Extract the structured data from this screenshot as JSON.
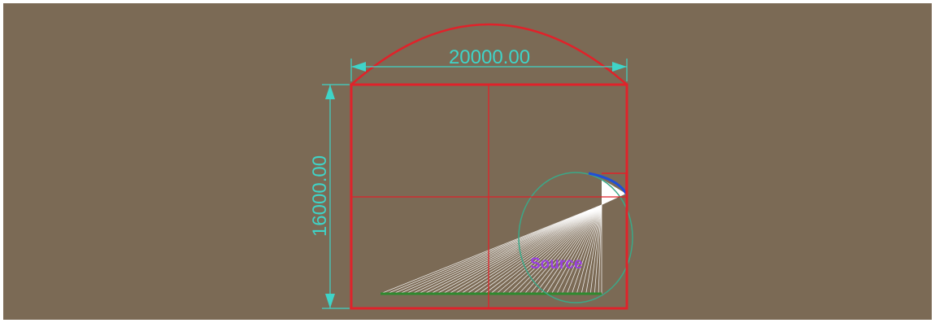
{
  "dimensions": {
    "width_label": "20000.00",
    "height_label": "16000.00"
  },
  "labels": {
    "source": "Source"
  },
  "colors": {
    "background": "#7b6a55",
    "frame": "#e0222a",
    "dimension": "#3fd4c8",
    "source_label": "#9a40e0",
    "rays": "#ffffff",
    "source_circle": "#3ba888",
    "arc_blue": "#1f4fd8",
    "floor": "#2f8a2f"
  }
}
